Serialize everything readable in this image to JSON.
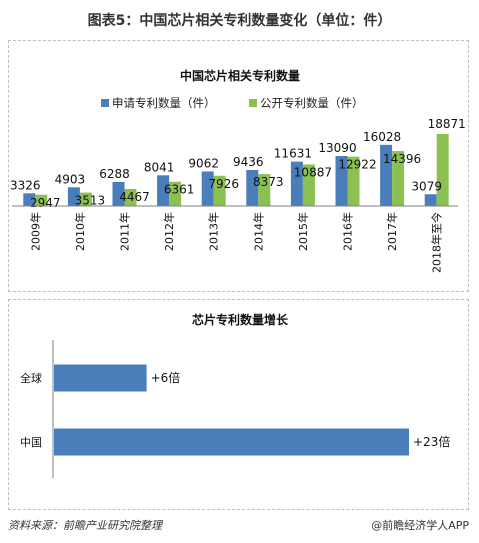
{
  "figure_title": "图表5：中国芯片相关专利数量变化（单位：件）",
  "source_label": "资料来源：前瞻产业研究院整理",
  "brand_label": "@前瞻经济学人APP",
  "colors": {
    "apply": "#4a7ebb",
    "publish": "#8cc152",
    "axis": "#808080"
  },
  "chart_data": [
    {
      "type": "bar",
      "title": "中国芯片相关专利数量",
      "legend_position": "top",
      "categories": [
        "2009年",
        "2010年",
        "2011年",
        "2012年",
        "2013年",
        "2014年",
        "2015年",
        "2016年",
        "2017年",
        "2018年至今"
      ],
      "series": [
        {
          "name": "申请专利数量（件）",
          "values": [
            3326,
            4903,
            6288,
            8041,
            9062,
            9436,
            11631,
            13090,
            16028,
            3079
          ]
        },
        {
          "name": "公开专利数量（件）",
          "values": [
            2947,
            3513,
            4467,
            6361,
            7926,
            8373,
            10887,
            12922,
            14396,
            18871
          ]
        }
      ],
      "ylim": [
        0,
        18871
      ],
      "grid": false
    },
    {
      "type": "bar",
      "orientation": "horizontal",
      "title": "芯片专利数量增长",
      "categories": [
        "全球",
        "中国"
      ],
      "values": [
        6,
        23
      ],
      "value_labels": [
        "+6倍",
        "+23倍"
      ],
      "grid": false
    }
  ]
}
